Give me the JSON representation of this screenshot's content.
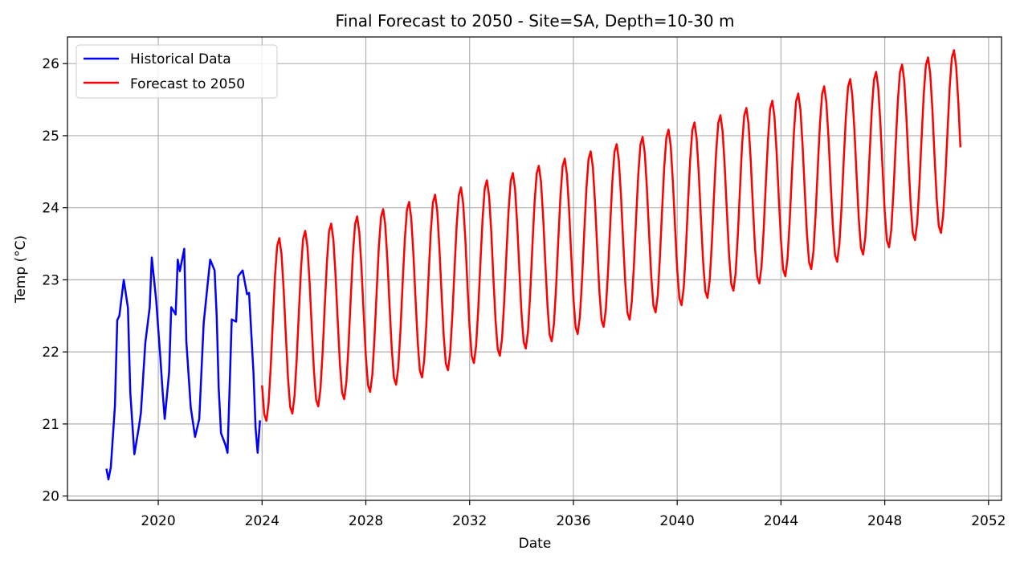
{
  "chart_data": {
    "type": "line",
    "title": "Final Forecast to 2050 - Site=SA, Depth=10-30 m",
    "xlabel": "Date",
    "ylabel": "Temp (°C)",
    "xlim": [
      2016.5,
      2052.5
    ],
    "ylim": [
      19.94,
      26.37
    ],
    "x_ticks": [
      2020,
      2024,
      2028,
      2032,
      2036,
      2040,
      2044,
      2048,
      2052
    ],
    "y_ticks": [
      20,
      21,
      22,
      23,
      24,
      25,
      26
    ],
    "grid": true,
    "legend_position": "top-left",
    "series": [
      {
        "name": "Historical Data",
        "color": "#0000ff",
        "x": [
          2018.0,
          2018.08,
          2018.17,
          2018.33,
          2018.42,
          2018.5,
          2018.67,
          2018.83,
          2018.92,
          2019.08,
          2019.25,
          2019.33,
          2019.5,
          2019.67,
          2019.75,
          2019.92,
          2020.08,
          2020.17,
          2020.25,
          2020.42,
          2020.5,
          2020.67,
          2020.75,
          2020.83,
          2021.0,
          2021.08,
          2021.25,
          2021.42,
          2021.58,
          2021.75,
          2021.92,
          2022.0,
          2022.17,
          2022.25,
          2022.33,
          2022.42,
          2022.58,
          2022.67,
          2022.75,
          2022.83,
          2023.0,
          2023.08,
          2023.25,
          2023.42,
          2023.5,
          2023.67,
          2023.75,
          2023.83,
          2023.92
        ],
        "y": [
          20.38,
          20.23,
          20.4,
          21.25,
          22.44,
          22.5,
          23.0,
          22.61,
          21.44,
          20.58,
          20.95,
          21.15,
          22.12,
          22.62,
          23.31,
          22.71,
          21.91,
          21.43,
          21.07,
          21.72,
          22.62,
          22.52,
          23.28,
          23.12,
          23.43,
          22.15,
          21.23,
          20.82,
          21.07,
          22.4,
          23.0,
          23.28,
          23.13,
          22.5,
          21.5,
          20.87,
          20.72,
          20.6,
          21.5,
          22.45,
          22.42,
          23.05,
          23.13,
          22.8,
          22.82,
          21.71,
          20.95,
          20.6,
          21.05
        ]
      },
      {
        "name": "Forecast to 2050",
        "color": "#ff0000",
        "base_start": 22.27,
        "base_end": 24.97,
        "amplitude": 1.25
      }
    ]
  }
}
